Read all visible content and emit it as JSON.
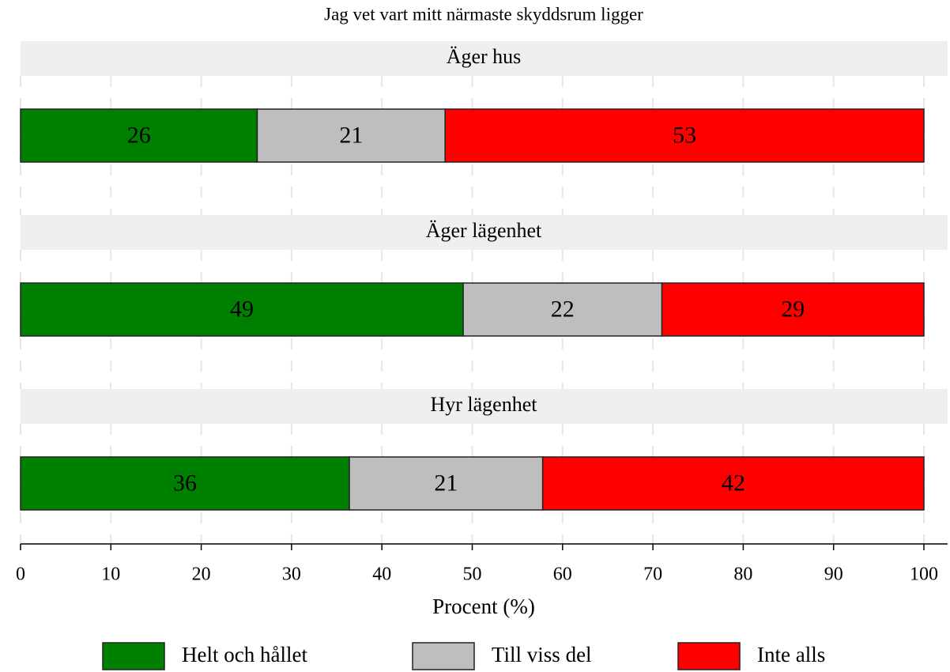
{
  "chart_data": {
    "type": "stacked-barh",
    "title": "Jag vet vart mitt närmaste skyddsrum ligger",
    "xlabel": "Procent (%)",
    "categories": [
      "Äger hus",
      "Äger lägenhet",
      "Hyr lägenhet"
    ],
    "series": [
      {
        "name": "Helt och hållet",
        "color": "#008000",
        "values": [
          26.2,
          49,
          36.4
        ],
        "value_labels": [
          "26",
          "49",
          "36"
        ]
      },
      {
        "name": "Till viss del",
        "color": "#bebebe",
        "values": [
          20.8,
          22,
          21.4
        ],
        "value_labels": [
          "21",
          "22",
          "21"
        ]
      },
      {
        "name": "Inte alls",
        "color": "#ff0000",
        "values": [
          53,
          29,
          42.2
        ],
        "value_labels": [
          "53",
          "29",
          "42"
        ]
      }
    ],
    "xlim": [
      0,
      100
    ],
    "xticks": [
      0,
      10,
      20,
      30,
      40,
      50,
      60,
      70,
      80,
      90,
      100
    ],
    "grid": true,
    "legend": "bottom"
  }
}
